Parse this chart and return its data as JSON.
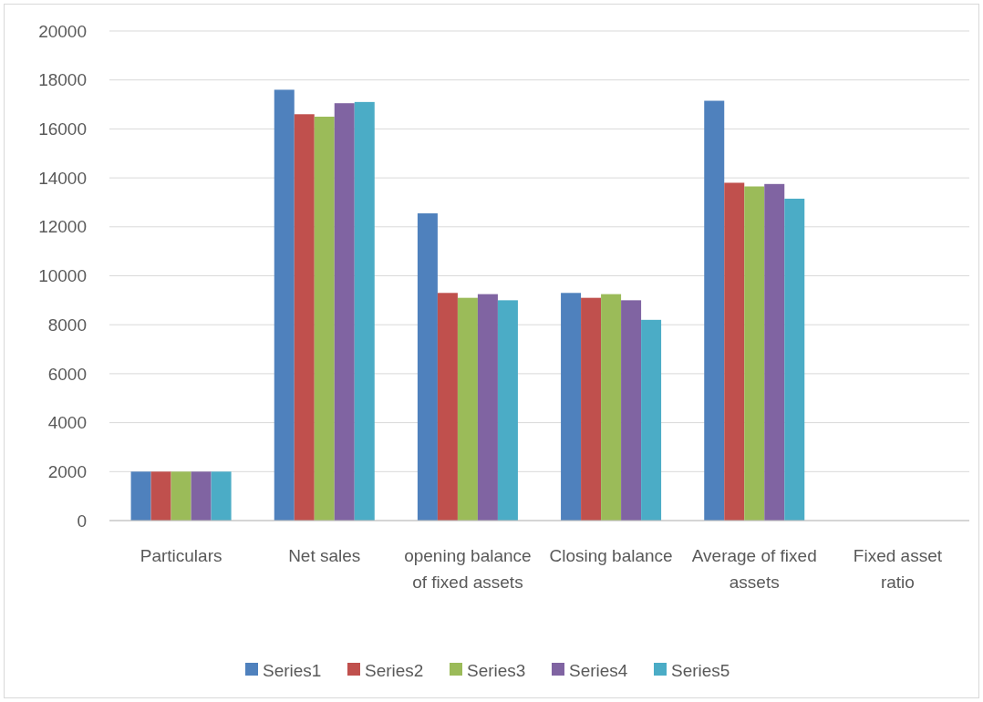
{
  "chart_data": {
    "type": "bar",
    "categories": [
      "Particulars",
      "Net sales",
      "opening balance of fixed assets",
      "Closing balance",
      "Average of fixed assets",
      "Fixed asset ratio"
    ],
    "series": [
      {
        "name": "Series1",
        "color": "#4f81bd",
        "values": [
          2000,
          17600,
          12550,
          9300,
          17150,
          null
        ]
      },
      {
        "name": "Series2",
        "color": "#c0504d",
        "values": [
          2000,
          16600,
          9300,
          9100,
          13800,
          null
        ]
      },
      {
        "name": "Series3",
        "color": "#9bbb59",
        "values": [
          2000,
          16500,
          9100,
          9250,
          13650,
          null
        ]
      },
      {
        "name": "Series4",
        "color": "#8064a2",
        "values": [
          2000,
          17050,
          9250,
          9000,
          13750,
          null
        ]
      },
      {
        "name": "Series5",
        "color": "#4bacc6",
        "values": [
          2000,
          17100,
          9000,
          8200,
          13150,
          null
        ]
      }
    ],
    "ylim": [
      0,
      20000
    ],
    "yticks": [
      0,
      2000,
      4000,
      6000,
      8000,
      10000,
      12000,
      14000,
      16000,
      18000,
      20000
    ],
    "grid": "y",
    "legend": "bottom"
  }
}
